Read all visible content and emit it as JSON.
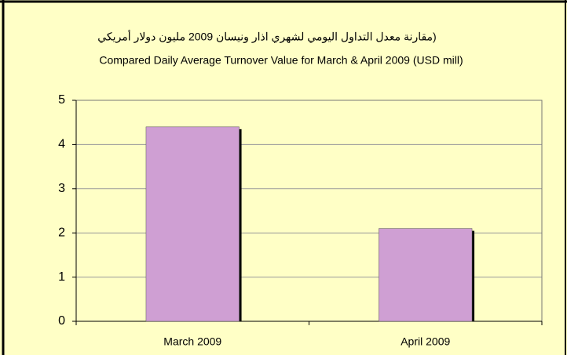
{
  "chart_data": {
    "type": "bar",
    "title": "Compared Daily Average Turnover Value for March & April 2009 (USD mill)",
    "subtitle": "(مقارنة معدل التداول اليومي  لشهري اذار ونيسان 2009 مليون دولار أمريكي",
    "categories": [
      "March 2009",
      "April 2009"
    ],
    "values": [
      4.4,
      2.1
    ],
    "color": "#cf9fd3",
    "ylim": [
      0,
      5
    ],
    "yticks": [
      0,
      1,
      2,
      3,
      4,
      5
    ],
    "grid": true
  }
}
